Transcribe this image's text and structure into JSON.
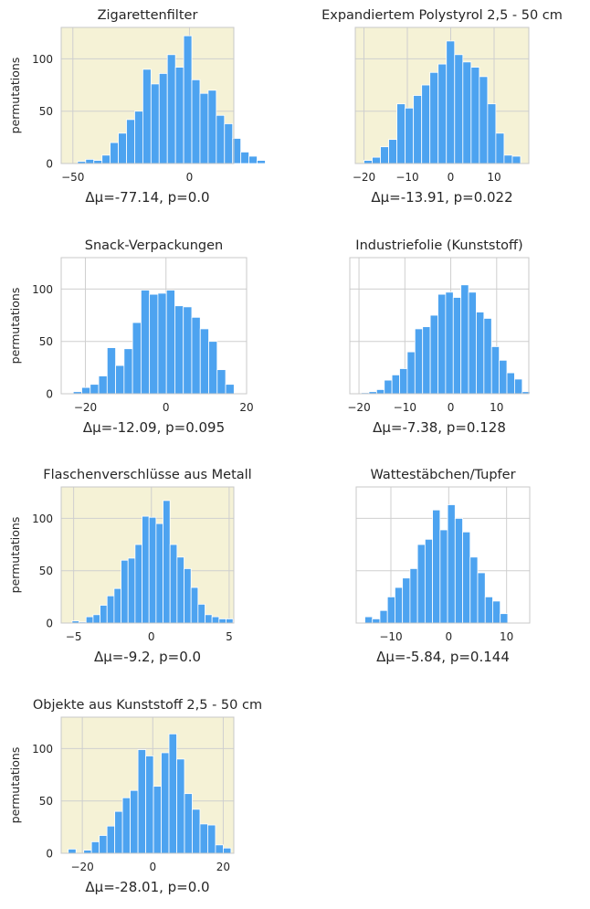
{
  "figure": {
    "ylabel": "permutations",
    "colors": {
      "bar": "#4da3f0",
      "bar_edge": "#ffffff",
      "highlight_bg": "#f5f2d6",
      "plain_bg": "#ffffff",
      "grid": "#cfcfcf",
      "frame": "#c8c8c8",
      "text": "#262626"
    }
  },
  "chart_data": [
    {
      "type": "bar",
      "title": "Zigarettenfilter",
      "xlabel": "Δμ=-77.14, p=0.0",
      "ylabel": "permutations",
      "highlighted": true,
      "xlim": [
        -55,
        19
      ],
      "ylim": [
        0,
        130
      ],
      "xticks": [
        -50,
        0
      ],
      "yticks": [
        0,
        50,
        100
      ],
      "bin_start": -48,
      "bin_width": 3.5,
      "values": [
        2,
        4,
        3,
        8,
        20,
        29,
        42,
        50,
        90,
        76,
        86,
        104,
        92,
        122,
        80,
        67,
        70,
        46,
        38,
        24,
        11,
        7,
        3
      ]
    },
    {
      "type": "bar",
      "title": "Expandiertem Polystyrol 2,5 - 50 cm",
      "xlabel": "Δμ=-13.91, p=0.022",
      "ylabel": "",
      "highlighted": true,
      "xlim": [
        -22,
        18
      ],
      "ylim": [
        0,
        130
      ],
      "xticks": [
        -20,
        -10,
        0,
        10
      ],
      "yticks": [
        0,
        50,
        100
      ],
      "bin_start": -20,
      "bin_width": 1.9,
      "values": [
        3,
        6,
        16,
        23,
        57,
        53,
        65,
        75,
        87,
        95,
        117,
        104,
        97,
        92,
        83,
        57,
        29,
        8,
        7
      ]
    },
    {
      "type": "bar",
      "title": "Snack-Verpackungen",
      "xlabel": "Δμ=-12.09, p=0.095",
      "ylabel": "permutations",
      "highlighted": false,
      "xlim": [
        -26,
        20
      ],
      "ylim": [
        0,
        130
      ],
      "xticks": [
        -20,
        0,
        20
      ],
      "yticks": [
        0,
        50,
        100
      ],
      "bin_start": -23,
      "bin_width": 2.1,
      "values": [
        2,
        6,
        9,
        17,
        44,
        27,
        43,
        68,
        99,
        95,
        96,
        99,
        84,
        83,
        73,
        62,
        50,
        23,
        9
      ]
    },
    {
      "type": "bar",
      "title": "Industriefolie (Kunststoff)",
      "xlabel": "Δμ=-7.38, p=0.128",
      "ylabel": "",
      "highlighted": false,
      "xlim": [
        -22,
        17
      ],
      "ylim": [
        0,
        130
      ],
      "xticks": [
        -20,
        -10,
        0,
        10
      ],
      "yticks": [
        0,
        50,
        100
      ],
      "bin_start": -19.5,
      "bin_width": 1.67,
      "values": [
        1,
        2,
        4,
        13,
        18,
        24,
        40,
        62,
        64,
        75,
        95,
        97,
        92,
        104,
        97,
        78,
        72,
        45,
        32,
        20,
        14,
        2
      ]
    },
    {
      "type": "bar",
      "title": "Flaschenverschlüsse aus Metall",
      "xlabel": "Δμ=-9.2, p=0.0",
      "ylabel": "permutations",
      "highlighted": true,
      "xlim": [
        -5.8,
        5.3
      ],
      "ylim": [
        0,
        130
      ],
      "xticks": [
        -5,
        0,
        5
      ],
      "yticks": [
        0,
        50,
        100
      ],
      "bin_start": -5.1,
      "bin_width": 0.45,
      "values": [
        2,
        1,
        6,
        8,
        17,
        26,
        33,
        60,
        62,
        75,
        102,
        101,
        95,
        117,
        75,
        63,
        52,
        34,
        18,
        8,
        6,
        4,
        4
      ]
    },
    {
      "type": "bar",
      "title": "Wattestäbchen/Tupfer",
      "xlabel": "Δμ=-5.84, p=0.144",
      "ylabel": "",
      "highlighted": false,
      "xlim": [
        -16,
        14
      ],
      "ylim": [
        0,
        130
      ],
      "xticks": [
        -10,
        0,
        10
      ],
      "yticks": [
        0,
        50,
        100
      ],
      "bin_start": -14.5,
      "bin_width": 1.3,
      "values": [
        6,
        4,
        12,
        25,
        34,
        43,
        52,
        75,
        80,
        108,
        89,
        113,
        100,
        87,
        63,
        48,
        25,
        21,
        9
      ]
    },
    {
      "type": "bar",
      "title": "Objekte aus Kunststoff 2,5 - 50 cm",
      "xlabel": "Δμ=-28.01, p=0.0",
      "ylabel": "permutations",
      "highlighted": true,
      "xlim": [
        -26,
        23
      ],
      "ylim": [
        0,
        130
      ],
      "xticks": [
        -20,
        0,
        20
      ],
      "yticks": [
        0,
        50,
        100
      ],
      "bin_start": -24,
      "bin_width": 2.2,
      "values": [
        4,
        0,
        3,
        11,
        17,
        26,
        40,
        53,
        60,
        99,
        93,
        64,
        96,
        114,
        90,
        57,
        42,
        28,
        27,
        8,
        5,
        0,
        0
      ]
    }
  ]
}
